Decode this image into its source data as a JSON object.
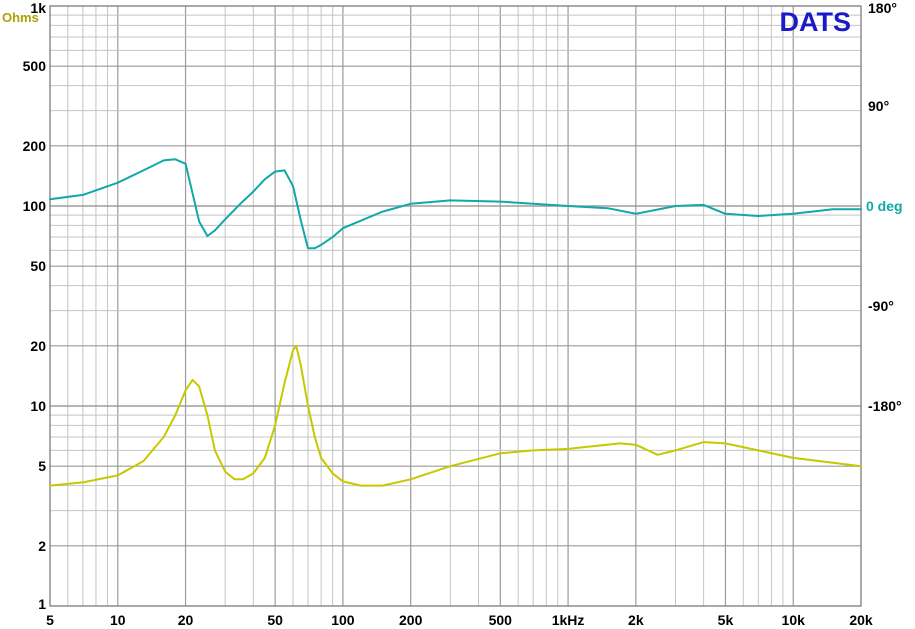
{
  "brand": {
    "text": "DATS",
    "color": "#1a1ac8"
  },
  "chart_data": {
    "type": "line",
    "x_scale": "log",
    "y_scale": "log",
    "xlim": [
      5,
      20000
    ],
    "ylim": [
      1,
      1000
    ],
    "y2lim": [
      -360,
      180
    ],
    "grid": true,
    "x_ticks": [
      {
        "value": 5,
        "label": "5"
      },
      {
        "value": 10,
        "label": "10"
      },
      {
        "value": 20,
        "label": "20"
      },
      {
        "value": 50,
        "label": "50"
      },
      {
        "value": 100,
        "label": "100"
      },
      {
        "value": 200,
        "label": "200"
      },
      {
        "value": 500,
        "label": "500"
      },
      {
        "value": 1000,
        "label": "1kHz"
      },
      {
        "value": 2000,
        "label": "2k"
      },
      {
        "value": 5000,
        "label": "5k"
      },
      {
        "value": 10000,
        "label": "10k"
      },
      {
        "value": 20000,
        "label": "20k"
      }
    ],
    "y_ticks": [
      {
        "value": 1,
        "label": "1"
      },
      {
        "value": 2,
        "label": "2"
      },
      {
        "value": 5,
        "label": "5"
      },
      {
        "value": 10,
        "label": "10"
      },
      {
        "value": 20,
        "label": "20"
      },
      {
        "value": 50,
        "label": "50"
      },
      {
        "value": 100,
        "label": "100"
      },
      {
        "value": 200,
        "label": "200"
      },
      {
        "value": 500,
        "label": "500"
      },
      {
        "value": 1000,
        "label": "1k"
      }
    ],
    "y2_ticks": [
      {
        "value": 180,
        "label": "180°"
      },
      {
        "value": 90,
        "label": "90°"
      },
      {
        "value": 0,
        "label": "0 deg"
      },
      {
        "value": -90,
        "label": "-90°"
      },
      {
        "value": -180,
        "label": "-180°"
      }
    ],
    "ylabel": "Ohms",
    "y2label": "deg",
    "series": [
      {
        "color": "#c8c800",
        "axis": "left",
        "x": [
          5,
          7,
          10,
          13,
          16,
          18,
          20,
          21.5,
          23,
          25,
          27,
          30,
          33,
          36,
          40,
          45,
          50,
          55,
          60,
          62,
          65,
          70,
          75,
          80,
          90,
          100,
          120,
          150,
          200,
          300,
          500,
          700,
          1000,
          1300,
          1700,
          2000,
          2500,
          3000,
          4000,
          5000,
          7000,
          10000,
          15000,
          20000
        ],
        "y": [
          4.0,
          4.15,
          4.5,
          5.3,
          7.0,
          9.0,
          12.0,
          13.5,
          12.5,
          9.0,
          6.0,
          4.7,
          4.3,
          4.3,
          4.6,
          5.5,
          8.0,
          13.0,
          19.0,
          20.0,
          16.0,
          10.0,
          7.0,
          5.5,
          4.6,
          4.2,
          4.0,
          4.0,
          4.3,
          5.0,
          5.8,
          6.0,
          6.1,
          6.3,
          6.5,
          6.4,
          5.7,
          6.0,
          6.6,
          6.5,
          6.0,
          5.5,
          5.2,
          5.0
        ]
      },
      {
        "color": "#10a8a8",
        "axis": "right",
        "x": [
          5,
          7,
          10,
          13,
          16,
          18,
          20,
          21,
          23,
          25,
          27,
          30,
          35,
          40,
          45,
          50,
          55,
          60,
          65,
          70,
          75,
          80,
          90,
          100,
          150,
          200,
          300,
          500,
          700,
          1000,
          1500,
          2000,
          3000,
          4000,
          5000,
          7000,
          10000,
          15000,
          20000
        ],
        "y": [
          6,
          10,
          21,
          32,
          41,
          42,
          38,
          20,
          -14,
          -27,
          -22,
          -12,
          2,
          13,
          24,
          31,
          32,
          18,
          -13,
          -38,
          -38,
          -35,
          -28,
          -20,
          -5,
          2,
          5,
          4,
          2,
          0,
          -2,
          -7,
          0,
          1,
          -7,
          -9,
          -7,
          -3,
          -3
        ]
      }
    ]
  }
}
